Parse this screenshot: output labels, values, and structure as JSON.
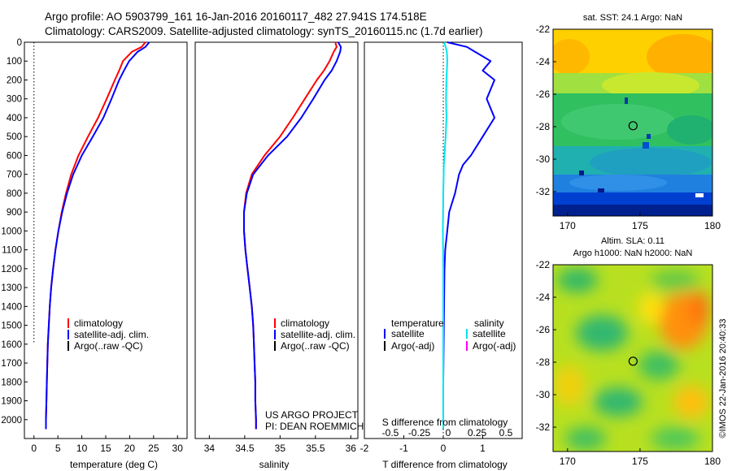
{
  "header": {
    "line1": "Argo profile: AO 5903799_161 16-Jan-2016 20160117_482 27.941S 174.518E",
    "line2": "Climatology: CARS2009. Satellite-adjusted climatology: synTS_20160115.nc (1.7d earlier)"
  },
  "footer_text": {
    "project": "US ARGO PROJECT",
    "pi": "PI: DEAN ROEMMICH",
    "imos": "©IMOS 22-Jan-2016 20:40:33"
  },
  "legends": {
    "temperature": [
      "climatology",
      "satellite-adj. clim.",
      "Argo(..raw -QC)"
    ],
    "salinity": [
      "climatology",
      "satellite-adj. clim.",
      "Argo(..raw -QC)"
    ],
    "difference": {
      "temp_header": "temperature",
      "sal_header": "salinity",
      "temp_items": [
        "satellite",
        "Argo(-adj)"
      ],
      "sal_items": [
        "satellite",
        "Argo(-adj)"
      ]
    }
  },
  "colors": {
    "climatology": "#ff0000",
    "satellite_adj": "#0000ff",
    "argo": "#000000",
    "temp_diff_sat": "#0000ff",
    "sal_diff_sat": "#00e5ee",
    "sal_diff_argo": "#ff00ff"
  },
  "chart_data": [
    {
      "type": "line",
      "panel": "temperature",
      "xlabel": "temperature (deg C)",
      "ylabel": "",
      "xlim": [
        -2,
        32
      ],
      "ylim": [
        2100,
        0
      ],
      "xticks": [
        0,
        5,
        10,
        15,
        20,
        25,
        30
      ],
      "yticks": [
        0,
        100,
        200,
        300,
        400,
        500,
        600,
        700,
        800,
        900,
        1000,
        1100,
        1200,
        1300,
        1400,
        1500,
        1600,
        1700,
        1800,
        1900,
        2000
      ],
      "reference_line": {
        "x": 0,
        "ymax": 1600
      },
      "depth": [
        0,
        25,
        50,
        100,
        150,
        200,
        300,
        400,
        500,
        600,
        700,
        800,
        900,
        1000,
        1100,
        1200,
        1300,
        1400,
        1500,
        1600,
        1700,
        1800,
        1900,
        2000,
        2050
      ],
      "series": [
        {
          "name": "climatology",
          "values": [
            23.3,
            22.5,
            20.5,
            18.6,
            17.8,
            16.9,
            15.2,
            13.4,
            11.3,
            9.3,
            7.8,
            6.7,
            5.8,
            5.1,
            4.5,
            4.0,
            3.6,
            3.3,
            3.1,
            2.9,
            2.8,
            2.7,
            2.6,
            2.5,
            2.5
          ]
        },
        {
          "name": "satellite-adj. clim.",
          "values": [
            24.1,
            23.3,
            21.7,
            19.9,
            18.8,
            17.8,
            16.2,
            14.5,
            12.3,
            10.0,
            8.2,
            6.9,
            5.9,
            5.1,
            4.5,
            4.0,
            3.6,
            3.3,
            3.1,
            2.9,
            2.8,
            2.7,
            2.6,
            2.5,
            2.5
          ]
        }
      ]
    },
    {
      "type": "line",
      "panel": "salinity",
      "xlabel": "salinity",
      "xlim": [
        33.8,
        36.1
      ],
      "ylim": [
        2100,
        0
      ],
      "xticks": [
        34,
        34.5,
        35,
        35.5,
        36
      ],
      "depth": [
        0,
        25,
        50,
        100,
        150,
        200,
        300,
        400,
        500,
        600,
        700,
        800,
        900,
        1000,
        1100,
        1200,
        1300,
        1400,
        1500,
        1600,
        1700,
        1800,
        1900,
        2000,
        2050
      ],
      "series": [
        {
          "name": "climatology",
          "values": [
            35.78,
            35.8,
            35.76,
            35.7,
            35.62,
            35.52,
            35.35,
            35.18,
            35.0,
            34.78,
            34.6,
            34.52,
            34.49,
            34.49,
            34.51,
            34.54,
            34.57,
            34.6,
            34.62,
            34.63,
            34.64,
            34.65,
            34.65,
            34.66,
            34.66
          ]
        },
        {
          "name": "satellite-adj. clim.",
          "values": [
            35.82,
            35.86,
            35.85,
            35.8,
            35.73,
            35.63,
            35.47,
            35.3,
            35.1,
            34.83,
            34.62,
            34.53,
            34.49,
            34.49,
            34.51,
            34.54,
            34.57,
            34.6,
            34.62,
            34.63,
            34.64,
            34.65,
            34.65,
            34.66,
            34.66
          ]
        }
      ]
    },
    {
      "type": "line",
      "panel": "difference",
      "xlabel": "T difference from climatology",
      "top_label": "S difference from climatology",
      "xlim": [
        -2,
        2
      ],
      "ylim": [
        2100,
        0
      ],
      "xticks": [
        -2,
        -1,
        0,
        1
      ],
      "top_xticks": [
        -0.5,
        -0.25,
        0,
        0.25,
        0.5
      ],
      "reference_line": {
        "x": 0
      },
      "depth": [
        0,
        25,
        50,
        100,
        150,
        200,
        300,
        400,
        500,
        600,
        650,
        700,
        800,
        900,
        1000,
        1100,
        1200,
        1400,
        1600,
        1800,
        2000,
        2050
      ],
      "series": [
        {
          "name": "temperature satellite",
          "values": [
            0.1,
            0.6,
            0.8,
            1.2,
            1.0,
            1.3,
            1.1,
            1.3,
            1.0,
            0.7,
            0.5,
            0.4,
            0.3,
            0.15,
            0.1,
            0.05,
            0.03,
            0.02,
            0.01,
            0.0,
            0.0,
            0.0
          ]
        },
        {
          "name": "salinity satellite",
          "values": [
            0.02,
            0.06,
            0.09,
            0.1,
            0.09,
            0.08,
            0.07,
            0.08,
            0.06,
            0.03,
            0.015,
            0.01,
            0.0,
            -0.005,
            -0.01,
            -0.005,
            0.0,
            0.0,
            0.0,
            0.0,
            0.0,
            0.0
          ]
        }
      ]
    },
    {
      "type": "heatmap",
      "panel": "sst-map",
      "title": "sat. SST: 24.1  Argo: NaN",
      "xlim": [
        169,
        180
      ],
      "ylim": [
        -33.5,
        -22
      ],
      "xticks": [
        170,
        175,
        180
      ],
      "yticks": [
        -22,
        -24,
        -26,
        -28,
        -30,
        -32
      ],
      "marker": {
        "lon": 174.52,
        "lat": -27.94
      }
    },
    {
      "type": "heatmap",
      "panel": "sla-map",
      "title": "Altim. SLA: 0.11",
      "subtitle": "Argo h1000: NaN h2000: NaN",
      "xlim": [
        169,
        180
      ],
      "ylim": [
        -33.5,
        -22
      ],
      "xticks": [
        170,
        175,
        180
      ],
      "yticks": [
        -22,
        -24,
        -26,
        -28,
        -30,
        -32
      ],
      "marker": {
        "lon": 174.52,
        "lat": -27.94
      }
    }
  ]
}
